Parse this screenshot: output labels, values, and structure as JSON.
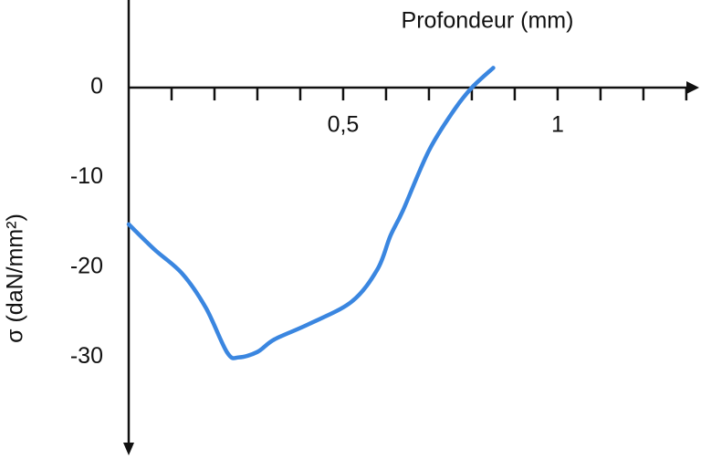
{
  "chart_data": {
    "type": "line",
    "x_label": "Profondeur (mm)",
    "y_label": "σ (daN/mm²)",
    "x": [
      0,
      0.06,
      0.125,
      0.18,
      0.23,
      0.257,
      0.3,
      0.34,
      0.42,
      0.52,
      0.58,
      0.61,
      0.64,
      0.7,
      0.76,
      0.8,
      0.85
    ],
    "series": [
      {
        "name": "σ",
        "color": "#3a86e0",
        "values": [
          -15.2,
          -18.0,
          -20.7,
          -24.5,
          -29.5,
          -30.0,
          -29.4,
          -28.0,
          -26.3,
          -23.8,
          -20.2,
          -16.5,
          -13.6,
          -7.0,
          -2.4,
          0,
          2.2
        ]
      }
    ],
    "xlim": [
      0,
      1.33
    ],
    "ylim": [
      9.75,
      -40.7
    ],
    "xticks": [
      {
        "value": 0.5,
        "label": "0,5"
      },
      1
    ],
    "xticks_minor": [
      0.1,
      0.2,
      0.3,
      0.4,
      0.5,
      0.6,
      0.7,
      0.8,
      0.9,
      1,
      1.1,
      1.2,
      1.3
    ],
    "yticks": [
      0,
      -10,
      -20,
      -30
    ]
  }
}
